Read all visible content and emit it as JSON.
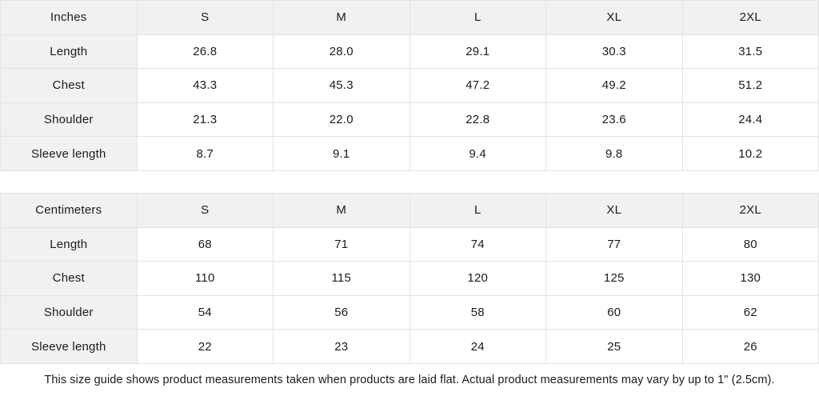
{
  "tables": [
    {
      "unit_label": "Inches",
      "sizes": [
        "S",
        "M",
        "L",
        "XL",
        "2XL"
      ],
      "rows": [
        {
          "label": "Length",
          "values": [
            "26.8",
            "28.0",
            "29.1",
            "30.3",
            "31.5"
          ]
        },
        {
          "label": "Chest",
          "values": [
            "43.3",
            "45.3",
            "47.2",
            "49.2",
            "51.2"
          ]
        },
        {
          "label": "Shoulder",
          "values": [
            "21.3",
            "22.0",
            "22.8",
            "23.6",
            "24.4"
          ]
        },
        {
          "label": "Sleeve length",
          "values": [
            "8.7",
            "9.1",
            "9.4",
            "9.8",
            "10.2"
          ]
        }
      ]
    },
    {
      "unit_label": "Centimeters",
      "sizes": [
        "S",
        "M",
        "L",
        "XL",
        "2XL"
      ],
      "rows": [
        {
          "label": "Length",
          "values": [
            "68",
            "71",
            "74",
            "77",
            "80"
          ]
        },
        {
          "label": "Chest",
          "values": [
            "110",
            "115",
            "120",
            "125",
            "130"
          ]
        },
        {
          "label": "Shoulder",
          "values": [
            "54",
            "56",
            "58",
            "60",
            "62"
          ]
        },
        {
          "label": "Sleeve length",
          "values": [
            "22",
            "23",
            "24",
            "25",
            "26"
          ]
        }
      ]
    }
  ],
  "footer": {
    "note": "This size guide shows product measurements taken when products are laid flat.  Actual product measurements may vary by up to 1\" (2.5cm)."
  },
  "colors": {
    "header_fill": "#f1f1f1",
    "cell_fill": "#ffffff",
    "border": "#e3e3e3",
    "text": "#1b1b1b"
  }
}
